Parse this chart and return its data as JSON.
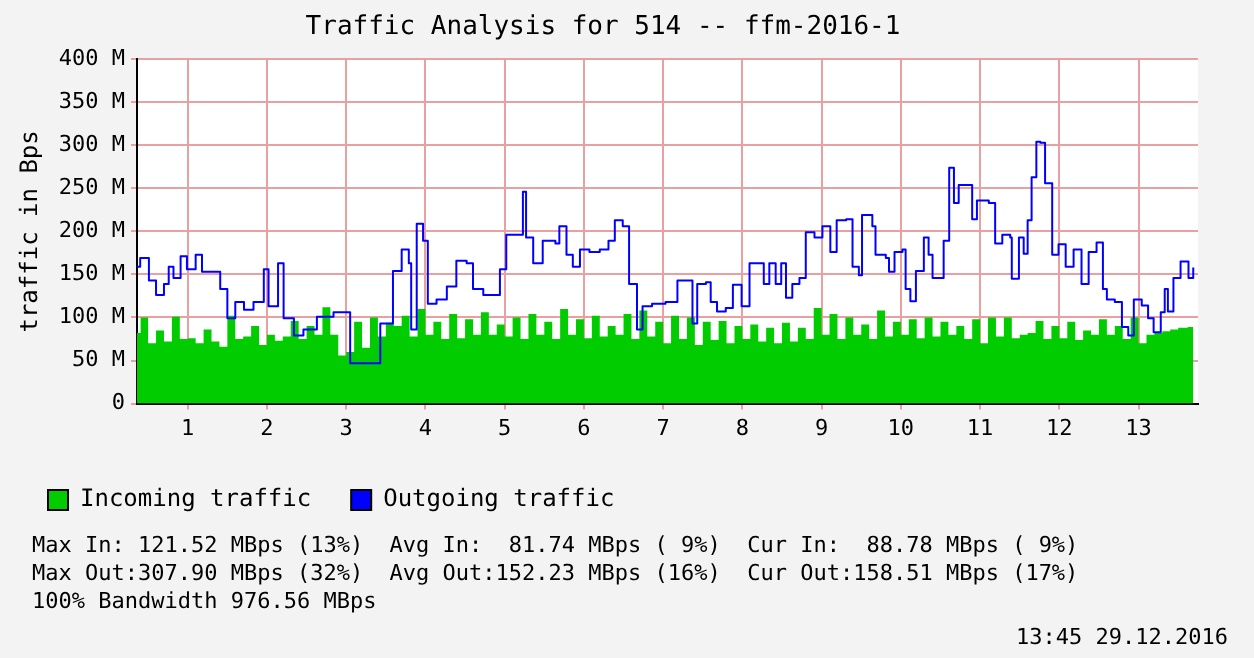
{
  "chart_data": {
    "type": "area",
    "title": "Traffic Analysis for 514 -- ffm-2016-1",
    "ylabel": "traffic in Bps",
    "xlim": [
      0.36,
      13.75
    ],
    "xticks": [
      1,
      2,
      3,
      4,
      5,
      6,
      7,
      8,
      9,
      10,
      11,
      12,
      13
    ],
    "ylim": [
      0,
      400
    ],
    "yticks": [
      0,
      {
        "value": 50,
        "label": "50 M"
      },
      {
        "value": 100,
        "label": "100 M"
      },
      {
        "value": 150,
        "label": "150 M"
      },
      {
        "value": 200,
        "label": "200 M"
      },
      {
        "value": 250,
        "label": "250 M"
      },
      {
        "value": 300,
        "label": "300 M"
      },
      {
        "value": 350,
        "label": "350 M"
      },
      {
        "value": 400,
        "label": "400 M"
      }
    ],
    "grid": true,
    "legend": "bottom",
    "marker": "none",
    "series": [
      {
        "name": "Incoming traffic",
        "type": "area",
        "color": "#00cc00",
        "x": [
          0.36,
          0.45,
          0.55,
          0.65,
          0.75,
          0.85,
          0.95,
          1.05,
          1.15,
          1.25,
          1.35,
          1.45,
          1.55,
          1.65,
          1.75,
          1.85,
          1.95,
          2.05,
          2.15,
          2.25,
          2.35,
          2.45,
          2.55,
          2.65,
          2.75,
          2.85,
          2.95,
          3.05,
          3.15,
          3.25,
          3.35,
          3.45,
          3.55,
          3.65,
          3.75,
          3.85,
          3.95,
          4.05,
          4.15,
          4.25,
          4.35,
          4.45,
          4.55,
          4.65,
          4.75,
          4.85,
          4.95,
          5.05,
          5.15,
          5.25,
          5.35,
          5.45,
          5.55,
          5.65,
          5.75,
          5.85,
          5.95,
          6.05,
          6.15,
          6.25,
          6.35,
          6.45,
          6.55,
          6.65,
          6.75,
          6.85,
          6.95,
          7.05,
          7.15,
          7.25,
          7.35,
          7.45,
          7.55,
          7.65,
          7.75,
          7.85,
          7.95,
          8.05,
          8.15,
          8.25,
          8.35,
          8.45,
          8.55,
          8.65,
          8.75,
          8.85,
          8.95,
          9.05,
          9.15,
          9.25,
          9.35,
          9.45,
          9.55,
          9.65,
          9.75,
          9.85,
          9.95,
          10.05,
          10.15,
          10.25,
          10.35,
          10.45,
          10.55,
          10.65,
          10.75,
          10.85,
          10.95,
          11.05,
          11.15,
          11.25,
          11.35,
          11.45,
          11.55,
          11.65,
          11.75,
          11.85,
          11.95,
          12.05,
          12.15,
          12.25,
          12.35,
          12.45,
          12.55,
          12.65,
          12.75,
          12.85,
          12.95,
          13.05,
          13.15,
          13.25,
          13.35,
          13.45,
          13.55,
          13.69
        ],
        "values": [
          82,
          100,
          70,
          85,
          72,
          101,
          75,
          76,
          70,
          86,
          72,
          66,
          102,
          75,
          78,
          90,
          68,
          80,
          73,
          78,
          96,
          75,
          90,
          80,
          112,
          80,
          56,
          60,
          95,
          65,
          100,
          78,
          94,
          90,
          102,
          78,
          110,
          80,
          95,
          75,
          104,
          76,
          98,
          80,
          106,
          80,
          92,
          78,
          100,
          75,
          104,
          80,
          95,
          75,
          110,
          80,
          98,
          76,
          102,
          78,
          90,
          80,
          104,
          75,
          108,
          78,
          95,
          70,
          102,
          75,
          100,
          68,
          95,
          74,
          96,
          70,
          90,
          75,
          92,
          72,
          88,
          70,
          94,
          72,
          88,
          75,
          111,
          80,
          104,
          75,
          100,
          80,
          92,
          75,
          108,
          78,
          95,
          80,
          98,
          76,
          100,
          78,
          95,
          80,
          90,
          75,
          98,
          70,
          100,
          78,
          100,
          76,
          80,
          82,
          96,
          75,
          90,
          76,
          95,
          74,
          85,
          80,
          98,
          80,
          90,
          75,
          100,
          70,
          80,
          82,
          84,
          86,
          88,
          89
        ]
      },
      {
        "name": "Outgoing traffic",
        "type": "step",
        "color": "#0000ff",
        "x": [
          0.36,
          0.4,
          0.49,
          0.51,
          0.6,
          0.7,
          0.76,
          0.82,
          0.91,
          0.99,
          1.1,
          1.18,
          1.33,
          1.41,
          1.5,
          1.6,
          1.71,
          1.83,
          1.96,
          2.02,
          2.14,
          2.21,
          2.34,
          2.46,
          2.63,
          2.71,
          2.84,
          2.96,
          3.05,
          3.22,
          3.37,
          3.43,
          3.55,
          3.59,
          3.7,
          3.79,
          3.82,
          3.89,
          3.97,
          4.03,
          4.14,
          4.27,
          4.39,
          4.52,
          4.6,
          4.73,
          4.85,
          4.94,
          5.02,
          5.19,
          5.23,
          5.27,
          5.36,
          5.48,
          5.64,
          5.69,
          5.78,
          5.86,
          5.95,
          6.07,
          6.2,
          6.31,
          6.39,
          6.49,
          6.57,
          6.67,
          6.74,
          6.86,
          7.03,
          7.12,
          7.18,
          7.31,
          7.37,
          7.43,
          7.54,
          7.6,
          7.68,
          7.79,
          7.88,
          7.99,
          8.09,
          8.21,
          8.27,
          8.34,
          8.42,
          8.49,
          8.55,
          8.63,
          8.72,
          8.8,
          8.91,
          9.01,
          9.11,
          9.19,
          9.31,
          9.39,
          9.47,
          9.51,
          9.64,
          9.68,
          9.81,
          9.85,
          9.92,
          10.02,
          10.06,
          10.12,
          10.19,
          10.29,
          10.35,
          10.4,
          10.48,
          10.54,
          10.61,
          10.67,
          10.73,
          10.86,
          10.9,
          10.96,
          11.11,
          11.19,
          11.28,
          11.38,
          11.4,
          11.45,
          11.49,
          11.55,
          11.6,
          11.65,
          11.71,
          11.76,
          11.82,
          11.91,
          11.99,
          12.08,
          12.18,
          12.28,
          12.37,
          12.47,
          12.55,
          12.6,
          12.7,
          12.79,
          12.87,
          12.94,
          13.04,
          13.12,
          13.19,
          13.28,
          13.33,
          13.37,
          13.44,
          13.53,
          13.63,
          13.69
        ],
        "values": [
          159,
          169,
          169,
          143,
          126,
          139,
          159,
          146,
          171,
          156,
          173,
          153,
          153,
          133,
          99,
          118,
          109,
          118,
          156,
          113,
          163,
          99,
          79,
          86,
          101,
          101,
          106,
          106,
          47,
          47,
          47,
          93,
          93,
          154,
          179,
          163,
          86,
          209,
          189,
          116,
          121,
          136,
          166,
          163,
          133,
          126,
          126,
          156,
          196,
          196,
          246,
          193,
          163,
          189,
          186,
          206,
          173,
          159,
          179,
          176,
          179,
          189,
          213,
          206,
          139,
          86,
          113,
          116,
          118,
          118,
          143,
          143,
          93,
          139,
          141,
          118,
          107,
          111,
          138,
          113,
          163,
          163,
          139,
          163,
          139,
          163,
          123,
          139,
          146,
          199,
          193,
          206,
          176,
          213,
          214,
          159,
          149,
          219,
          206,
          173,
          169,
          153,
          176,
          179,
          133,
          119,
          154,
          193,
          173,
          146,
          146,
          189,
          274,
          233,
          254,
          254,
          214,
          236,
          233,
          186,
          196,
          193,
          145,
          145,
          193,
          174,
          213,
          263,
          304,
          303,
          256,
          173,
          185,
          159,
          179,
          139,
          176,
          187,
          133,
          121,
          118,
          89,
          79,
          121,
          114,
          99,
          83,
          106,
          133,
          107,
          146,
          165,
          146,
          158
        ]
      }
    ],
    "annotations": [
      "Max In: 121.52 MBps (13%)  Avg In:  81.74 MBps ( 9%)  Cur In:  88.78 MBps ( 9%)",
      "Max Out:307.90 MBps (32%)  Avg Out:152.23 MBps (16%)  Cur Out:158.51 MBps (17%)",
      "100% Bandwidth 976.56 MBps",
      "13:45 29.12.2016"
    ]
  }
}
